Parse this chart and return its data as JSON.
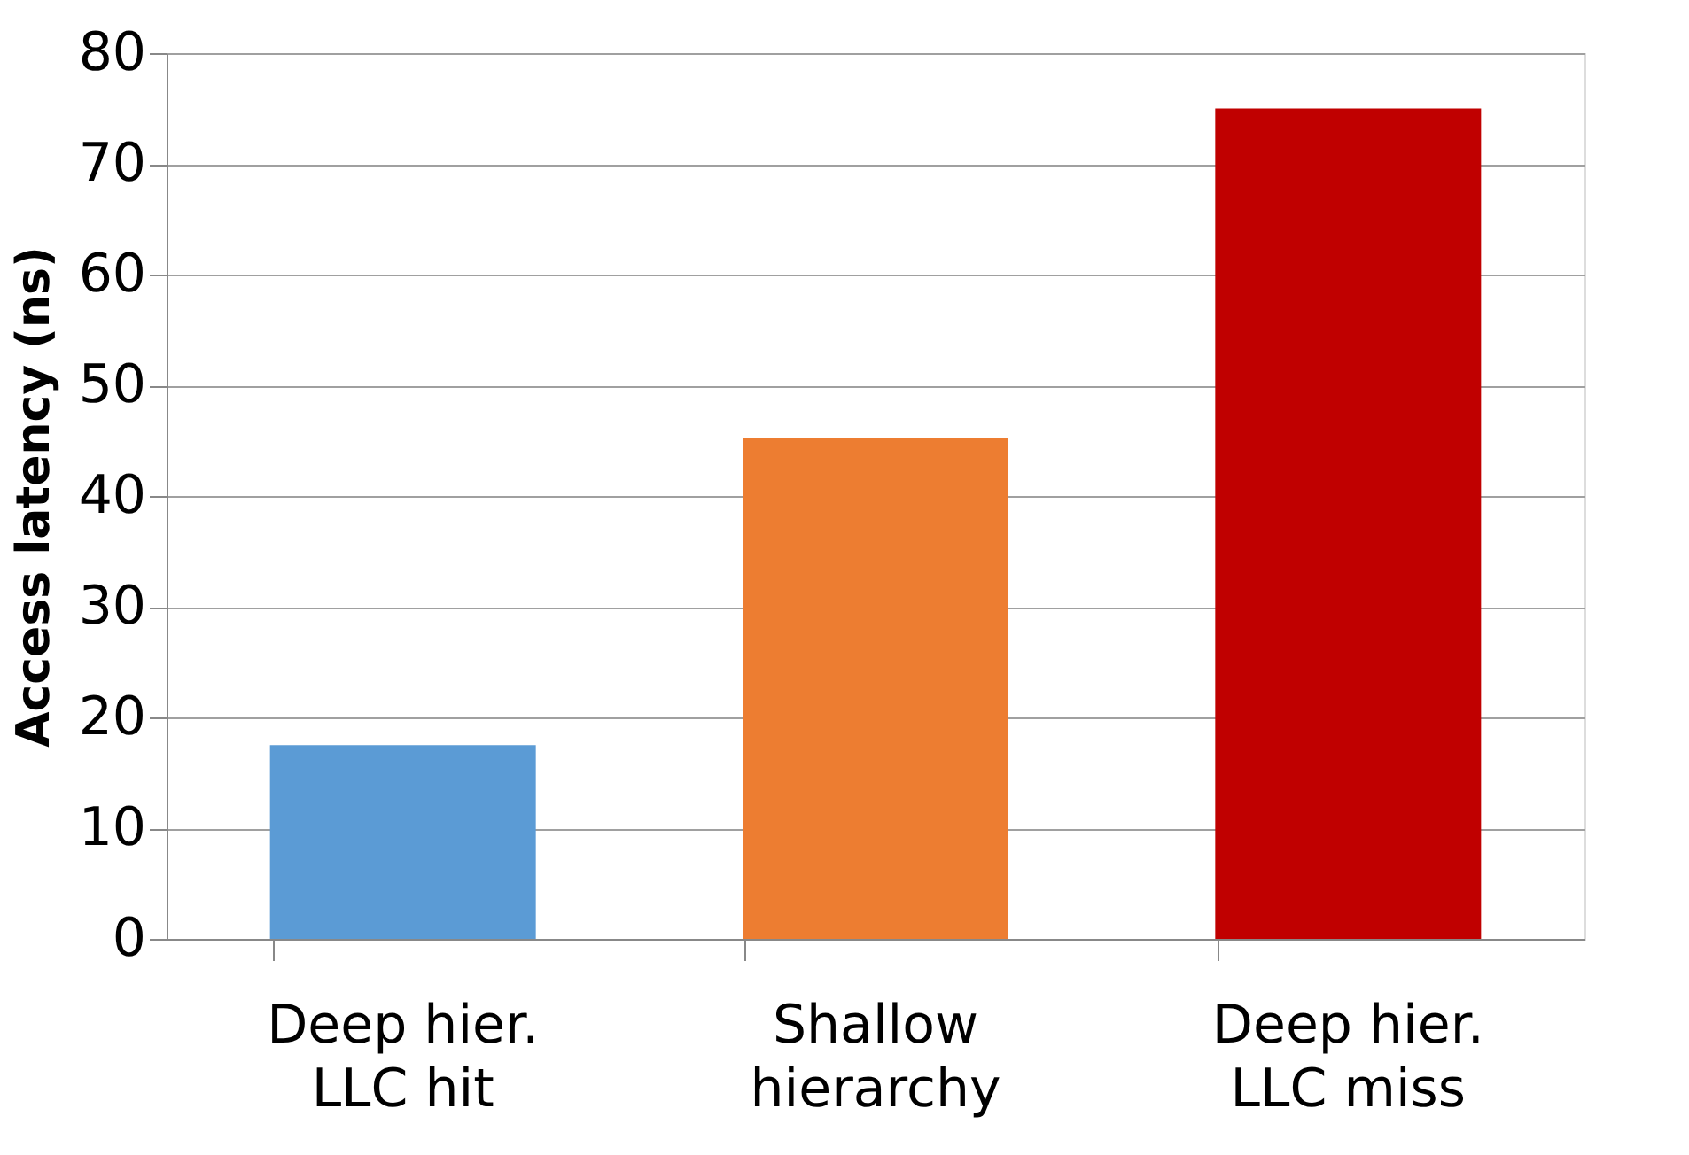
{
  "chart_data": {
    "type": "bar",
    "ylabel": "Access latency (ns)",
    "categories": [
      "Deep hier.\nLLC hit",
      "Shallow\nhierarchy",
      "Deep hier.\nLLC miss"
    ],
    "values": [
      17.5,
      45.2,
      75
    ],
    "colors": [
      "#5b9bd5",
      "#ed7d31",
      "#c00000"
    ],
    "ylim": [
      0,
      80
    ],
    "yticks": [
      0,
      10,
      20,
      30,
      40,
      50,
      60,
      70,
      80
    ],
    "grid": "y"
  }
}
